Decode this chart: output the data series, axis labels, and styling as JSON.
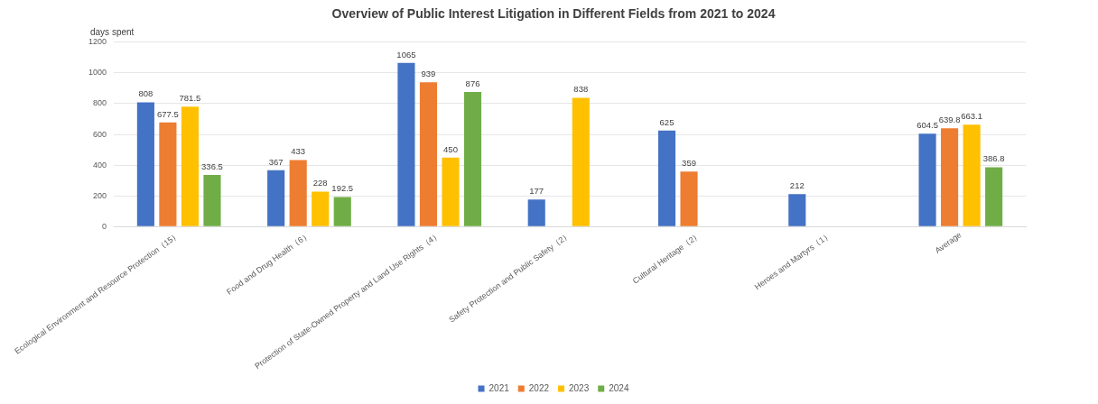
{
  "chart_data": {
    "type": "bar",
    "title": "Overview of Public Interest Litigation in Different Fields from 2021 to 2024",
    "ylabel": "days spent",
    "categories": [
      "Ecological Environment and Resource Protection（15）",
      "Food and Drug Health（6）",
      "Protection of State-Owned Property and Land Use Rights（4）",
      "Safety Protection and Public Safety（2）",
      "Cultural Heritage（2）",
      "Heroes and Martyrs（1）",
      "Average"
    ],
    "series": [
      {
        "name": "2021",
        "color": "#4472c4",
        "values": [
          808,
          367,
          1065,
          177,
          625,
          212,
          604.5
        ]
      },
      {
        "name": "2022",
        "color": "#ed7d31",
        "values": [
          677.5,
          433,
          939,
          null,
          359,
          null,
          639.8
        ]
      },
      {
        "name": "2023",
        "color": "#ffc000",
        "values": [
          781.5,
          228,
          450,
          838,
          null,
          null,
          663.1
        ]
      },
      {
        "name": "2024",
        "color": "#70ad47",
        "values": [
          336.5,
          192.5,
          876,
          null,
          null,
          null,
          386.8
        ]
      }
    ],
    "ylim": [
      0,
      1200
    ],
    "yticks": [
      0,
      200,
      400,
      600,
      800,
      1000,
      1200
    ],
    "grid": "y",
    "legend": "bottom",
    "data_labels": true
  }
}
